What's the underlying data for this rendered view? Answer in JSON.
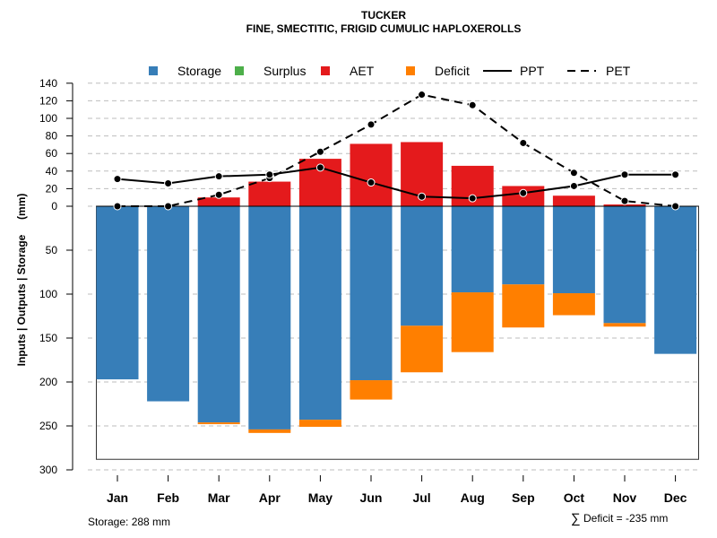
{
  "chart_data": {
    "type": "bar",
    "title": "TUCKER",
    "subtitle": "FINE, SMECTITIC, FRIGID CUMULIC HAPLOXEROLLS",
    "xlabel": "",
    "ylabel": "Inputs | Outputs | Storage     (mm)",
    "categories": [
      "Jan",
      "Feb",
      "Mar",
      "Apr",
      "May",
      "Jun",
      "Jul",
      "Aug",
      "Sep",
      "Oct",
      "Nov",
      "Dec"
    ],
    "y_ticks_positive": [
      0,
      20,
      40,
      60,
      80,
      100,
      120,
      140
    ],
    "y_ticks_negative": [
      50,
      100,
      150,
      200,
      250,
      300
    ],
    "ylim": [
      -300,
      140
    ],
    "grid": true,
    "legend_position": "top",
    "legend": [
      {
        "name": "Storage",
        "kind": "box",
        "color": "#377EB8"
      },
      {
        "name": "Surplus",
        "kind": "box",
        "color": "#4DAF4A"
      },
      {
        "name": "AET",
        "kind": "box",
        "color": "#E41A1C"
      },
      {
        "name": "Deficit",
        "kind": "box",
        "color": "#FF7F00"
      },
      {
        "name": "PPT",
        "kind": "solid-line",
        "color": "#000000"
      },
      {
        "name": "PET",
        "kind": "dashed-line",
        "color": "#000000"
      }
    ],
    "series": [
      {
        "name": "Storage",
        "type": "bar-down",
        "color": "#377EB8",
        "values": [
          197,
          222,
          246,
          254,
          243,
          198,
          136,
          98,
          89,
          99,
          133,
          168
        ]
      },
      {
        "name": "Deficit",
        "type": "bar-down-stacked",
        "color": "#FF7F00",
        "values": [
          0,
          0,
          2,
          4,
          8,
          22,
          53,
          68,
          49,
          25,
          4,
          0
        ]
      },
      {
        "name": "Surplus",
        "type": "bar-up",
        "color": "#4DAF4A",
        "values": [
          0,
          0,
          0,
          0,
          0,
          0,
          0,
          0,
          0,
          0,
          0,
          0
        ]
      },
      {
        "name": "AET",
        "type": "bar-up",
        "color": "#E41A1C",
        "values": [
          0,
          0,
          10,
          28,
          54,
          71,
          73,
          46,
          23,
          12,
          2,
          0
        ]
      },
      {
        "name": "PPT",
        "type": "line",
        "color": "#000000",
        "values": [
          31,
          26,
          34,
          36,
          44,
          27,
          11,
          9,
          15,
          23,
          36,
          36
        ]
      },
      {
        "name": "PET",
        "type": "dashed-line",
        "color": "#000000",
        "values": [
          0,
          0,
          13,
          32,
          62,
          93,
          127,
          115,
          72,
          38,
          6,
          0
        ]
      }
    ],
    "storage_capacity": 288,
    "annotations": {
      "storage": "Storage: 288 mm",
      "deficit_sum_symbol": "∑",
      "deficit_sum": "Deficit = -235 mm"
    }
  }
}
